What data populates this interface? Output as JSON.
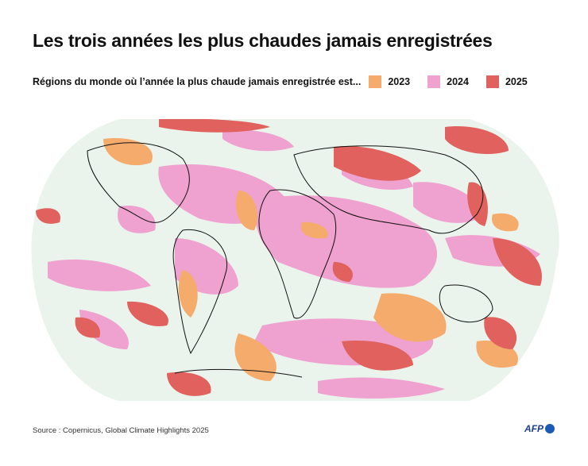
{
  "title": "Les trois années les plus chaudes jamais enregistrées",
  "legend": {
    "label": "Régions du monde où l’année la plus chaude jamais enregistrée est...",
    "items": [
      {
        "year": "2023",
        "color": "#f4ab6c"
      },
      {
        "year": "2024",
        "color": "#efa1cf"
      },
      {
        "year": "2025",
        "color": "#e0615d"
      }
    ]
  },
  "map": {
    "projection": "world equal-area",
    "background_color": "#eaf4ec",
    "coastline_color": "#111111"
  },
  "source": "Source : Copernicus, Global Climate Highlights 2025",
  "logo": "AFP"
}
